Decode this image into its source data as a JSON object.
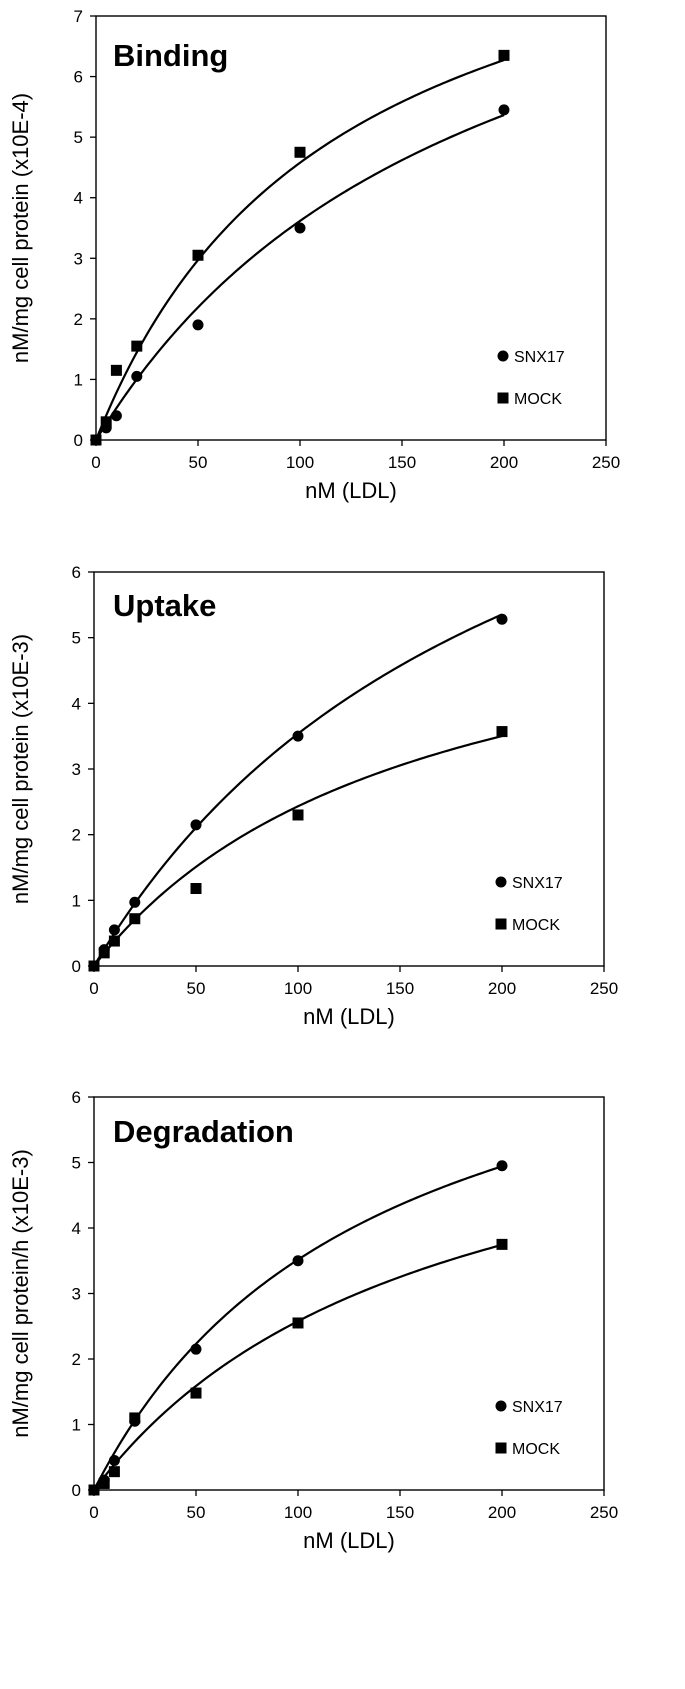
{
  "chart_data": [
    {
      "type": "scatter",
      "title": "Binding",
      "xlabel": "nM (LDL)",
      "ylabel": "nM/mg cell protein (x10E-4)",
      "xlim": [
        0,
        250
      ],
      "ylim": [
        0,
        7
      ],
      "xticks": [
        "0",
        "50",
        "100",
        "150",
        "200",
        "250"
      ],
      "yticks": [
        "0",
        "1",
        "2",
        "3",
        "4",
        "5",
        "6",
        "7"
      ],
      "legend_position": "lower-right",
      "grid": false,
      "series": [
        {
          "name": "SNX17",
          "marker": "circle",
          "color": "#000000",
          "points": [
            [
              0,
              0.0
            ],
            [
              5,
              0.2
            ],
            [
              10,
              0.4
            ],
            [
              20,
              1.05
            ],
            [
              50,
              1.9
            ],
            [
              100,
              3.5
            ],
            [
              200,
              5.45
            ]
          ],
          "fit": {
            "a": 10.38,
            "b": 187
          }
        },
        {
          "name": "MOCK",
          "marker": "square",
          "color": "#000000",
          "points": [
            [
              0,
              0.0
            ],
            [
              5,
              0.3
            ],
            [
              10,
              1.15
            ],
            [
              20,
              1.55
            ],
            [
              50,
              3.05
            ],
            [
              100,
              4.75
            ],
            [
              200,
              6.35
            ]
          ],
          "fit": {
            "a": 9.96,
            "b": 117.6
          }
        }
      ]
    },
    {
      "type": "scatter",
      "title": "Uptake",
      "xlabel": "nM (LDL)",
      "ylabel": "nM/mg cell protein (x10E-3)",
      "xlim": [
        0,
        250
      ],
      "ylim": [
        0,
        6
      ],
      "xticks": [
        "0",
        "50",
        "100",
        "150",
        "200",
        "250"
      ],
      "yticks": [
        "0",
        "1",
        "2",
        "3",
        "4",
        "5",
        "6"
      ],
      "legend_position": "lower-right",
      "grid": false,
      "series": [
        {
          "name": "SNX17",
          "marker": "circle",
          "color": "#000000",
          "points": [
            [
              0,
              0.0
            ],
            [
              5,
              0.25
            ],
            [
              10,
              0.55
            ],
            [
              20,
              0.97
            ],
            [
              50,
              2.15
            ],
            [
              100,
              3.5
            ],
            [
              200,
              5.28
            ]
          ],
          "fit": {
            "a": 11.0,
            "b": 211
          }
        },
        {
          "name": "MOCK",
          "marker": "square",
          "color": "#000000",
          "points": [
            [
              0,
              0.0
            ],
            [
              5,
              0.2
            ],
            [
              10,
              0.38
            ],
            [
              20,
              0.72
            ],
            [
              50,
              1.18
            ],
            [
              100,
              2.3
            ],
            [
              200,
              3.57
            ]
          ],
          "fit": {
            "a": 6.25,
            "b": 157
          }
        }
      ]
    },
    {
      "type": "scatter",
      "title": "Degradation",
      "xlabel": "nM (LDL)",
      "ylabel": "nM/mg cell protein/h (x10E-3)",
      "xlim": [
        0,
        250
      ],
      "ylim": [
        0,
        6
      ],
      "xticks": [
        "0",
        "50",
        "100",
        "150",
        "200",
        "250"
      ],
      "yticks": [
        "0",
        "1",
        "2",
        "3",
        "4",
        "5",
        "6"
      ],
      "legend_position": "lower-right",
      "grid": false,
      "series": [
        {
          "name": "SNX17",
          "marker": "circle",
          "color": "#000000",
          "points": [
            [
              0,
              0.0
            ],
            [
              5,
              0.15
            ],
            [
              10,
              0.45
            ],
            [
              20,
              1.05
            ],
            [
              50,
              2.15
            ],
            [
              100,
              3.5
            ],
            [
              200,
              4.95
            ]
          ],
          "fit": {
            "a": 8.3,
            "b": 136
          }
        },
        {
          "name": "MOCK",
          "marker": "square",
          "color": "#000000",
          "points": [
            [
              0,
              0.0
            ],
            [
              5,
              0.1
            ],
            [
              10,
              0.28
            ],
            [
              20,
              1.1
            ],
            [
              50,
              1.48
            ],
            [
              100,
              2.55
            ],
            [
              200,
              3.75
            ]
          ],
          "fit": {
            "a": 6.83,
            "b": 165
          }
        }
      ]
    }
  ]
}
